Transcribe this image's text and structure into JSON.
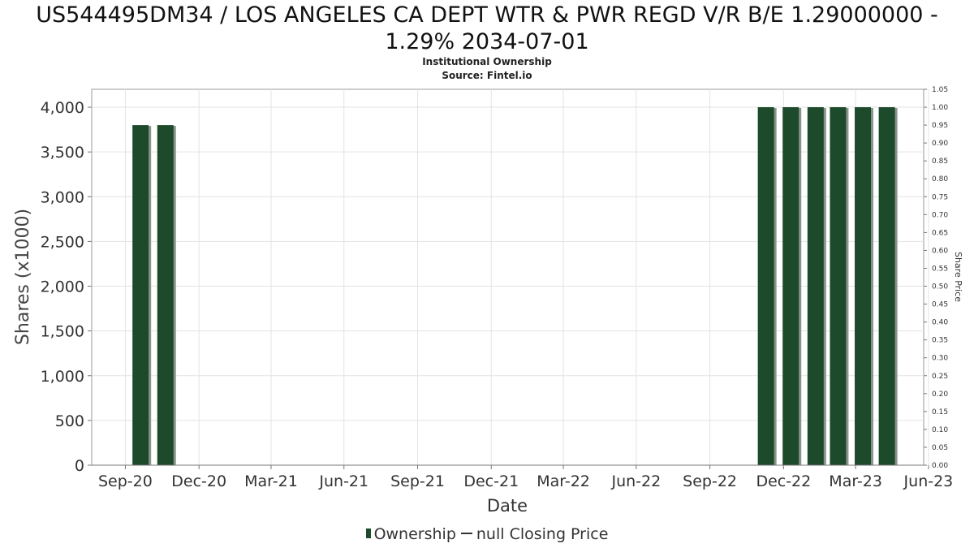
{
  "header": {
    "title_line1": "US544495DM34 / LOS ANGELES CA DEPT WTR & PWR REGD V/R B/E 1.29000000 -",
    "title_line2": "1.29% 2034-07-01",
    "subtitle": "Institutional Ownership",
    "source": "Source: Fintel.io"
  },
  "legend": {
    "ownership_label": "Ownership",
    "price_label": "null Closing Price"
  },
  "colors": {
    "bar": "#1e4a2c",
    "bar_shadow": "#8a948c",
    "grid": "#e3e3e3"
  },
  "chart_data": {
    "type": "bar",
    "xlabel": "Date",
    "ylabel": "Shares (x1000)",
    "y2label": "Share Price",
    "ylim": [
      0,
      4200
    ],
    "y2lim": [
      0,
      1.05
    ],
    "xlim": [
      "2020-08-20",
      "2023-06-25"
    ],
    "x_ticks": [
      {
        "date": "2020-10-01",
        "label": "Sep-20"
      },
      {
        "date": "2021-01-01",
        "label": "Dec-20"
      },
      {
        "date": "2021-04-01",
        "label": "Mar-21"
      },
      {
        "date": "2021-07-01",
        "label": "Jun-21"
      },
      {
        "date": "2021-10-01",
        "label": "Sep-21"
      },
      {
        "date": "2022-01-01",
        "label": "Dec-21"
      },
      {
        "date": "2022-04-01",
        "label": "Mar-22"
      },
      {
        "date": "2022-07-01",
        "label": "Jun-22"
      },
      {
        "date": "2022-10-01",
        "label": "Sep-22"
      },
      {
        "date": "2023-01-01",
        "label": "Dec-22"
      },
      {
        "date": "2023-04-01",
        "label": "Mar-23"
      },
      {
        "date": "2023-07-01",
        "label": "Jun-23"
      }
    ],
    "y_ticks": [
      {
        "value": 0,
        "label": "0"
      },
      {
        "value": 500,
        "label": "500"
      },
      {
        "value": 1000,
        "label": "1,000"
      },
      {
        "value": 1500,
        "label": "1,500"
      },
      {
        "value": 2000,
        "label": "2,000"
      },
      {
        "value": 2500,
        "label": "2,500"
      },
      {
        "value": 3000,
        "label": "3,000"
      },
      {
        "value": 3500,
        "label": "3,500"
      },
      {
        "value": 4000,
        "label": "4,000"
      }
    ],
    "y2_ticks": [
      "0.00",
      "0.05",
      "0.10",
      "0.15",
      "0.20",
      "0.25",
      "0.30",
      "0.35",
      "0.40",
      "0.45",
      "0.50",
      "0.55",
      "0.60",
      "0.65",
      "0.70",
      "0.75",
      "0.80",
      "0.85",
      "0.90",
      "0.95",
      "1.00",
      "1.05"
    ],
    "series": [
      {
        "name": "Ownership",
        "points": [
          {
            "date": "2020-10-20",
            "value": 3800
          },
          {
            "date": "2020-11-20",
            "value": 3800
          },
          {
            "date": "2022-12-10",
            "value": 4000
          },
          {
            "date": "2023-01-10",
            "value": 4000
          },
          {
            "date": "2023-02-10",
            "value": 4000
          },
          {
            "date": "2023-03-10",
            "value": 4000
          },
          {
            "date": "2023-04-10",
            "value": 4000
          },
          {
            "date": "2023-05-10",
            "value": 4000
          }
        ]
      }
    ]
  }
}
